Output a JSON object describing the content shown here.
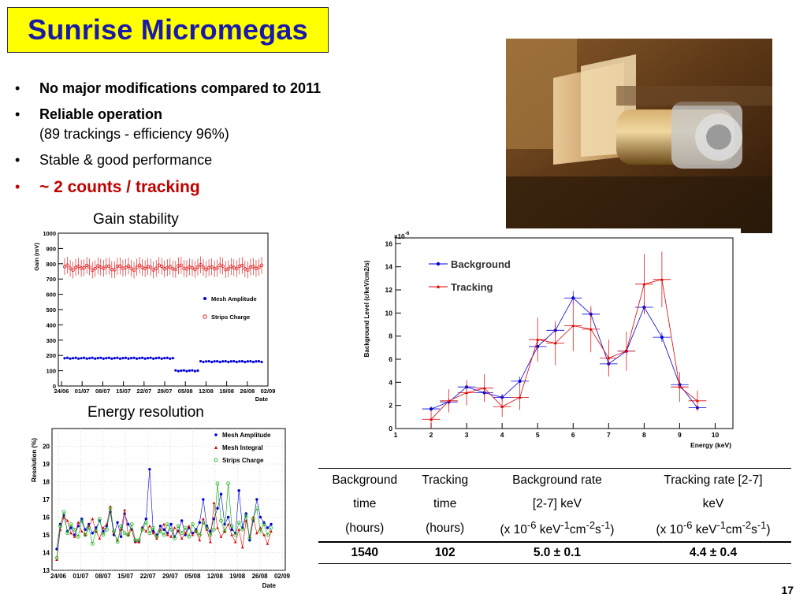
{
  "slide": {
    "title": "Sunrise Micromegas",
    "page_number": "17"
  },
  "bullets": [
    {
      "text": "No major modifications compared to 2011",
      "sub": ""
    },
    {
      "text": "Reliable operation",
      "sub": "(89 trackings - efficiency 96%)"
    },
    {
      "text": "Stable & good performance",
      "sub": ""
    },
    {
      "text": "~ 2 counts / tracking",
      "sub": ""
    }
  ],
  "captions": {
    "gain": "Gain stability",
    "energy": "Energy resolution"
  },
  "colors": {
    "title_bg": "#ffff00",
    "title_text": "#1a1aa8",
    "highlight": "#c00000",
    "blue_series": "#0000dd",
    "red_series": "#dd0000",
    "green_series": "#00aa00"
  },
  "chart_data": [
    {
      "type": "scatter",
      "name_id": "gain",
      "xlabel": "Date",
      "ylabel": "Gain (mV)",
      "ylim": [
        0,
        1000
      ],
      "x_ticks": [
        "24/06",
        "01/07",
        "08/07",
        "15/07",
        "22/07",
        "29/07",
        "05/08",
        "12/08",
        "19/08",
        "26/08",
        "02/09"
      ],
      "y_ticks": [
        0,
        100,
        200,
        300,
        400,
        500,
        600,
        700,
        800,
        900,
        1000
      ],
      "legend": [
        "Mesh Amplitude",
        "Strips Charge"
      ],
      "series": [
        {
          "name": "Strips Charge",
          "mean": 775,
          "error": 55
        },
        {
          "name": "Mesh Amplitude",
          "segments": [
            [
              0.0,
              0.56,
              182
            ],
            [
              0.56,
              0.69,
              100
            ],
            [
              0.69,
              1.0,
              160
            ]
          ]
        }
      ]
    },
    {
      "type": "scatter",
      "name_id": "resolution",
      "xlabel": "Date",
      "ylabel": "Resolution (%)",
      "ylim": [
        13,
        21
      ],
      "x_ticks": [
        "24/06",
        "01/07",
        "08/07",
        "15/07",
        "22/07",
        "29/07",
        "05/08",
        "12/08",
        "19/08",
        "26/08",
        "02/09"
      ],
      "y_ticks": [
        13,
        14,
        15,
        16,
        17,
        18,
        19,
        20
      ],
      "legend": [
        "Mesh Amplitude",
        "Mesh Integral",
        "Strips Charge"
      ],
      "series": [
        {
          "name": "Mesh Amplitude",
          "values": [
            14.2,
            15.6,
            16.1,
            15.2,
            15.4,
            15.0,
            15.5,
            15.9,
            15.3,
            15.6,
            15.1,
            15.4,
            15.8,
            15.2,
            15.5,
            16.3,
            15.0,
            15.7,
            14.9,
            16.2,
            15.6,
            15.3,
            14.6,
            14.6,
            15.4,
            15.9,
            18.7,
            15.2,
            15.0,
            15.5,
            15.3,
            15.1,
            15.6,
            14.9,
            15.2,
            15.8,
            15.0,
            15.4,
            15.1,
            15.3,
            15.7,
            17.0,
            15.5,
            15.2,
            15.9,
            16.5,
            17.3,
            15.6,
            16.0,
            15.3,
            15.1,
            17.5,
            15.4,
            16.2,
            14.7,
            15.8,
            17.0,
            16.0,
            15.7,
            15.4,
            15.6
          ]
        },
        {
          "name": "Mesh Integral",
          "values": [
            13.6,
            15.3,
            16.0,
            15.8,
            15.1,
            14.9,
            15.7,
            15.2,
            15.0,
            15.5,
            15.9,
            15.2,
            14.8,
            15.4,
            15.6,
            16.6,
            15.1,
            14.7,
            15.3,
            16.4,
            15.0,
            15.3,
            14.6,
            14.6,
            15.4,
            15.2,
            15.5,
            15.1,
            14.8,
            15.3,
            15.6,
            15.0,
            14.9,
            15.4,
            15.2,
            14.8,
            15.1,
            15.5,
            15.0,
            15.2,
            14.7,
            15.9,
            15.3,
            14.6,
            16.8,
            15.4,
            14.9,
            15.2,
            15.6,
            15.0,
            14.6,
            15.3,
            14.3,
            15.8,
            14.9,
            16.0,
            15.1,
            15.4,
            15.0,
            14.5,
            15.2
          ]
        },
        {
          "name": "Strips Charge",
          "values": [
            13.7,
            15.5,
            16.3,
            15.1,
            15.6,
            15.3,
            14.9,
            15.8,
            15.0,
            15.4,
            14.5,
            15.2,
            15.9,
            15.0,
            15.3,
            16.5,
            15.2,
            14.6,
            15.5,
            15.1,
            15.0,
            15.6,
            14.7,
            14.7,
            15.3,
            15.7,
            15.1,
            15.4,
            14.9,
            15.2,
            15.0,
            15.6,
            15.3,
            14.8,
            15.5,
            15.1,
            15.4,
            14.9,
            15.6,
            15.2,
            15.0,
            15.7,
            15.4,
            15.0,
            15.3,
            17.9,
            15.8,
            15.2,
            17.9,
            15.5,
            15.0,
            15.7,
            15.3,
            16.1,
            14.8,
            15.9,
            16.5,
            15.2,
            15.6,
            15.0,
            15.4
          ]
        }
      ]
    },
    {
      "type": "line",
      "name_id": "background",
      "xlabel": "Energy (keV)",
      "ylabel": "Background Level (c/keV/cm2/s)",
      "y_multiplier": "×10",
      "y_multiplier_exp": "-6",
      "xlim": [
        1,
        10.5
      ],
      "ylim": [
        0,
        16.5
      ],
      "x_ticks": [
        1,
        2,
        3,
        4,
        5,
        6,
        7,
        8,
        9,
        10
      ],
      "y_ticks": [
        0,
        2,
        4,
        6,
        8,
        10,
        12,
        14,
        16
      ],
      "series": [
        {
          "name": "Background",
          "x": [
            2,
            2.5,
            3,
            3.5,
            4,
            4.5,
            5,
            5.5,
            6,
            6.5,
            7,
            7.5,
            8,
            8.5,
            9,
            9.5
          ],
          "values": [
            1.7,
            2.3,
            3.6,
            3.1,
            2.7,
            4.1,
            7.1,
            8.5,
            11.3,
            9.9,
            5.6,
            6.7,
            10.5,
            7.9,
            3.8,
            1.8
          ]
        },
        {
          "name": "Tracking",
          "x": [
            2,
            2.5,
            3,
            3.5,
            4,
            4.5,
            5,
            5.5,
            6,
            6.5,
            7,
            7.5,
            8,
            8.5,
            9,
            9.5
          ],
          "values": [
            0.8,
            2.4,
            3.1,
            3.5,
            1.9,
            2.7,
            7.7,
            7.4,
            8.9,
            8.6,
            6.1,
            6.7,
            12.5,
            12.9,
            3.6,
            2.4
          ]
        }
      ]
    }
  ],
  "table": {
    "headers": [
      {
        "l1": "Background",
        "l2": "time"
      },
      {
        "l1": "Tracking",
        "l2": "time"
      },
      {
        "l1": "Background rate",
        "l2": "[2-7]  keV"
      },
      {
        "l1": "Tracking rate [2-7]",
        "l2": "keV"
      }
    ],
    "units": [
      "(hours)",
      "(hours)"
    ],
    "unit_rate": {
      "pre": "(x 10",
      "e1": "-6",
      "k": " keV",
      "e2": "-1",
      "cm": "cm",
      "e3": "-2",
      "s": "s",
      "e4": "-1",
      "post": ")"
    },
    "unit_rate2": {
      "pre": "(x 10",
      "e1": "-6",
      "k": "  keV",
      "e2": "-1",
      "cm": "cm",
      "e3": "-2",
      "s": "s",
      "e4": "-1",
      "post": ")"
    },
    "values": [
      "1540",
      "102",
      "5.0 ± 0.1",
      "4.4 ± 0.4"
    ]
  }
}
